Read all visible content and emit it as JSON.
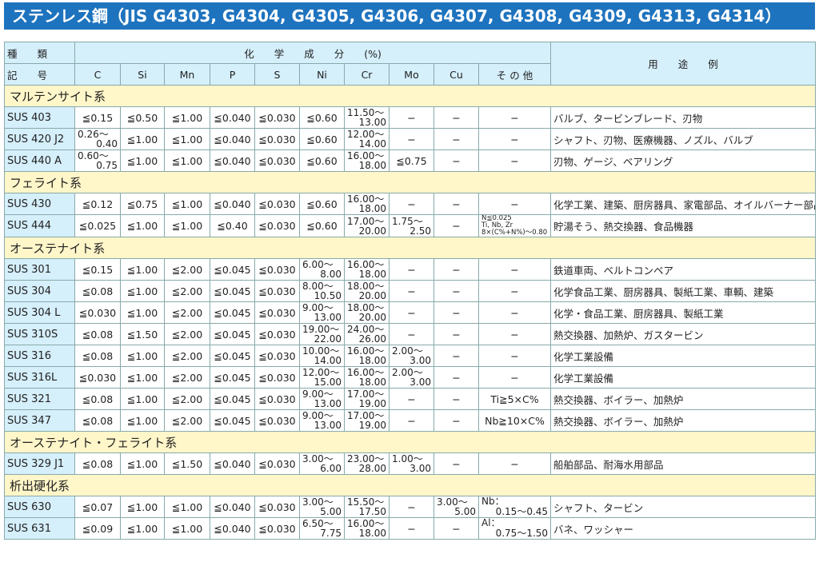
{
  "title": "ステンレス鋼（JIS G4303, G4304, G4305, G4306, G4307, G4308, G4309, G4313, G4314）",
  "header": {
    "type_top": "種　　類",
    "type_bottom": "記　　号",
    "chem": "化　　学　　成　　分　　(%)",
    "columns": [
      "C",
      "Si",
      "Mn",
      "P",
      "S",
      "Ni",
      "Cr",
      "Mo",
      "Cu",
      "そ の 他"
    ],
    "use": "用　　途　　例"
  },
  "sections": [
    {
      "name": "マルテンサイト系",
      "rows": [
        {
          "grade": "SUS 403",
          "vals": [
            "≦0.15",
            "≦0.50",
            "≦1.00",
            "≦0.040",
            "≦0.030",
            "≦0.60",
            "11.50〜13.00",
            "−",
            "−",
            "−"
          ],
          "use": "バルブ、タービンブレード、刃物"
        },
        {
          "grade": "SUS 420 J2",
          "vals": [
            "0.26〜0.40",
            "≦1.00",
            "≦1.00",
            "≦0.040",
            "≦0.030",
            "≦0.60",
            "12.00〜14.00",
            "−",
            "−",
            "−"
          ],
          "use": "シャフト、刃物、医療機器、ノズル、バルブ"
        },
        {
          "grade": "SUS 440 A",
          "vals": [
            "0.60〜0.75",
            "≦1.00",
            "≦1.00",
            "≦0.040",
            "≦0.030",
            "≦0.60",
            "16.00〜18.00",
            "≦0.75",
            "−",
            "−"
          ],
          "use": "刃物、ゲージ、ベアリング"
        }
      ]
    },
    {
      "name": "フェライト系",
      "rows": [
        {
          "grade": "SUS 430",
          "vals": [
            "≦0.12",
            "≦0.75",
            "≦1.00",
            "≦0.040",
            "≦0.030",
            "≦0.60",
            "16.00〜18.00",
            "−",
            "−",
            "−"
          ],
          "use": "化学工業、建築、厨房器具、家電部品、オイルバーナー部品"
        },
        {
          "grade": "SUS 444",
          "vals": [
            "≦0.025",
            "≦1.00",
            "≦1.00",
            "≦0.40",
            "≦0.030",
            "≦0.60",
            "17.00〜20.00",
            "1.75〜2.50",
            "−",
            [
              "N≦0.025",
              "Ti, Nb, Zr",
              "8×(C%+N%)〜0.80"
            ]
          ],
          "use": "貯湯そう、熱交換器、食品機器"
        }
      ]
    },
    {
      "name": "オーステナイト系",
      "rows": [
        {
          "grade": "SUS 301",
          "vals": [
            "≦0.15",
            "≦1.00",
            "≦2.00",
            "≦0.045",
            "≦0.030",
            "6.00〜8.00",
            "16.00〜18.00",
            "−",
            "−",
            "−"
          ],
          "use": "鉄道車両、ベルトコンベア"
        },
        {
          "grade": "SUS 304",
          "vals": [
            "≦0.08",
            "≦1.00",
            "≦2.00",
            "≦0.045",
            "≦0.030",
            "8.00〜10.50",
            "18.00〜20.00",
            "−",
            "−",
            "−"
          ],
          "use": "化学食品工業、厨房器具、製紙工業、車輌、建築"
        },
        {
          "grade": "SUS 304 L",
          "vals": [
            "≦0.030",
            "≦1.00",
            "≦2.00",
            "≦0.045",
            "≦0.030",
            "9.00〜13.00",
            "18.00〜20.00",
            "−",
            "−",
            "−"
          ],
          "use": "化学・食品工業、厨房器具、製紙工業"
        },
        {
          "grade": "SUS 310S",
          "vals": [
            "≦0.08",
            "≦1.50",
            "≦2.00",
            "≦0.045",
            "≦0.030",
            "19.00〜22.00",
            "24.00〜26.00",
            "−",
            "−",
            "−"
          ],
          "use": "熱交換器、加熱炉、ガスタービン"
        },
        {
          "grade": "SUS 316",
          "vals": [
            "≦0.08",
            "≦1.00",
            "≦2.00",
            "≦0.045",
            "≦0.030",
            "10.00〜14.00",
            "16.00〜18.00",
            "2.00〜3.00",
            "−",
            "−"
          ],
          "use": "化学工業設備"
        },
        {
          "grade": "SUS 316L",
          "vals": [
            "≦0.030",
            "≦1.00",
            "≦2.00",
            "≦0.045",
            "≦0.030",
            "12.00〜15.00",
            "16.00〜18.00",
            "2.00〜3.00",
            "−",
            "−"
          ],
          "use": "化学工業設備"
        },
        {
          "grade": "SUS 321",
          "vals": [
            "≦0.08",
            "≦1.00",
            "≦2.00",
            "≦0.045",
            "≦0.030",
            "9.00〜13.00",
            "17.00〜19.00",
            "−",
            "−",
            "Ti≧5×C%"
          ],
          "use": "熱交換器、ボイラー、加熱炉"
        },
        {
          "grade": "SUS 347",
          "vals": [
            "≦0.08",
            "≦1.00",
            "≦2.00",
            "≦0.045",
            "≦0.030",
            "9.00〜13.00",
            "17.00〜19.00",
            "−",
            "−",
            "Nb≧10×C%"
          ],
          "use": "熱交換器、ボイラー、加熱炉"
        }
      ]
    },
    {
      "name": "オーステナイト・フェライト系",
      "rows": [
        {
          "grade": "SUS 329 J1",
          "vals": [
            "≦0.08",
            "≦1.00",
            "≦1.50",
            "≦0.040",
            "≦0.030",
            "3.00〜6.00",
            "23.00〜28.00",
            "1.00〜3.00",
            "−",
            "−"
          ],
          "use": "船舶部品、耐海水用部品"
        }
      ]
    },
    {
      "name": "析出硬化系",
      "rows": [
        {
          "grade": "SUS 630",
          "vals": [
            "≦0.07",
            "≦1.00",
            "≦1.00",
            "≦0.040",
            "≦0.030",
            "3.00〜5.00",
            "15.50〜17.50",
            "−",
            "3.00〜5.00",
            {
              "lines": [
                "Nb：",
                "0.15〜0.45"
              ]
            }
          ],
          "use": "シャフト、タービン"
        },
        {
          "grade": "SUS 631",
          "vals": [
            "≦0.09",
            "≦1.00",
            "≦1.00",
            "≦0.040",
            "≦0.030",
            "6.50〜7.75",
            "16.00〜18.00",
            "−",
            "−",
            {
              "lines": [
                "Al：",
                "0.75〜1.50"
              ]
            }
          ],
          "use": "バネ、ワッシャー"
        }
      ]
    }
  ],
  "colors": {
    "title_bg": "#1e73be",
    "header_bg": "#d5effb",
    "section_bg": "#fff6c9"
  }
}
